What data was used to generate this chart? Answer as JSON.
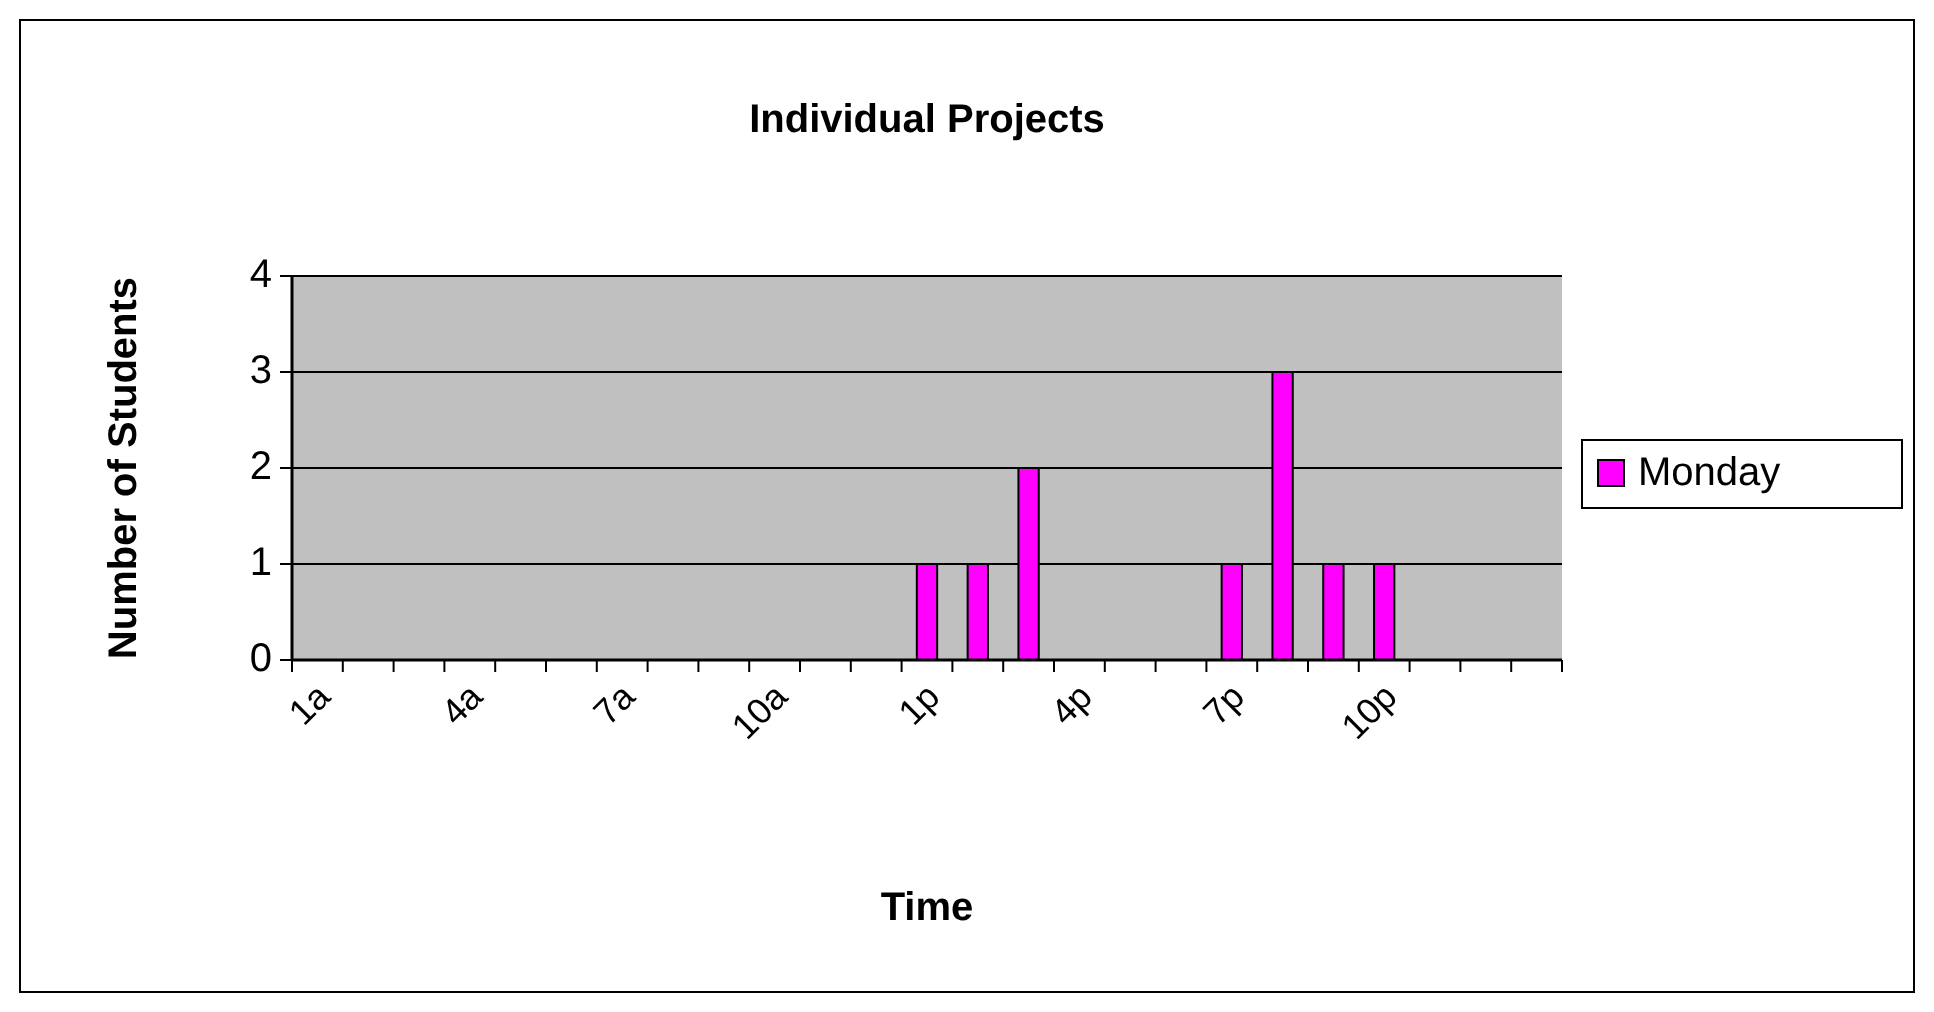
{
  "chart_data": {
    "type": "bar",
    "title": "Individual Projects",
    "xlabel": "Time",
    "ylabel": "Number of Students",
    "categories": [
      "1a",
      null,
      null,
      "4a",
      null,
      null,
      "7a",
      null,
      null,
      "10a",
      null,
      null,
      "1p",
      null,
      null,
      "4p",
      null,
      null,
      "7p",
      null,
      null,
      "10p",
      null,
      null,
      null
    ],
    "series": [
      {
        "name": "Monday",
        "color": "#ff00ff",
        "values": [
          0,
          0,
          0,
          0,
          0,
          0,
          0,
          0,
          0,
          0,
          0,
          0,
          1,
          1,
          2,
          0,
          0,
          0,
          1,
          3,
          1,
          1,
          0,
          0,
          0
        ]
      }
    ],
    "ylim": [
      0,
      4
    ],
    "yticks": [
      0,
      1,
      2,
      3,
      4
    ],
    "grid": "y",
    "legend": "right"
  }
}
